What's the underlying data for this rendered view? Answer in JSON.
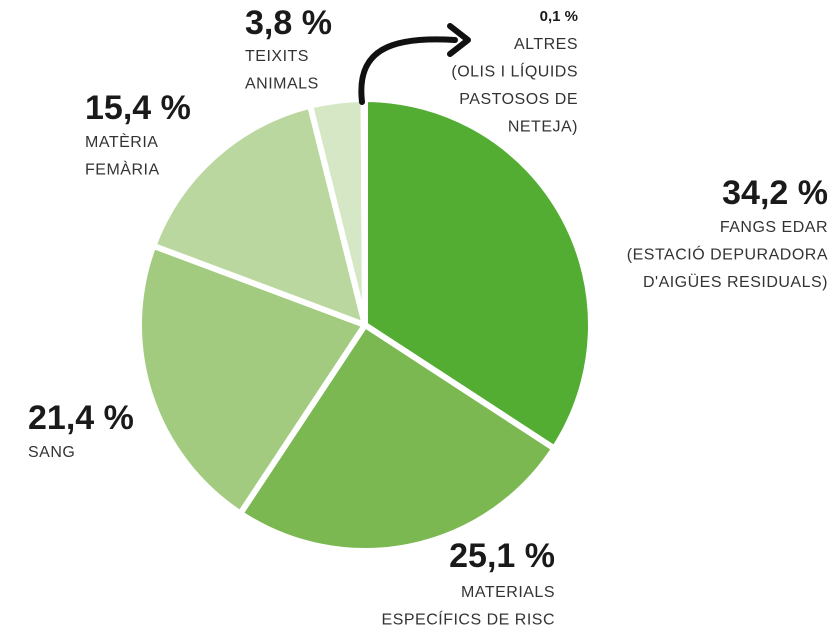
{
  "chart_data": {
    "type": "pie",
    "categories": [
      [
        "FANGS EDAR",
        "(ESTACIÓ DEPURADORA",
        "D'AIGÜES RESIDUALS)"
      ],
      [
        "MATERIALS",
        "ESPECÍFICS DE RISC"
      ],
      [
        "SANG"
      ],
      [
        "MATÈRIA",
        "FEMÀRIA"
      ],
      [
        "TEIXITS",
        "ANIMALS"
      ],
      [
        "ALTRES",
        "(OLIS I LÍQUIDS",
        "PASTOSOS DE",
        "NETEJA)"
      ]
    ],
    "values": [
      34.2,
      25.1,
      21.4,
      15.4,
      3.8,
      0.1
    ],
    "value_labels": [
      "34,2 %",
      "25,1 %",
      "21,4 %",
      "15,4 %",
      "3,8 %",
      "0,1 %"
    ],
    "colors": [
      "#52ad32",
      "#7bb852",
      "#a2cb7f",
      "#b9d79e",
      "#d5e7c4",
      "#eef5e8"
    ]
  }
}
